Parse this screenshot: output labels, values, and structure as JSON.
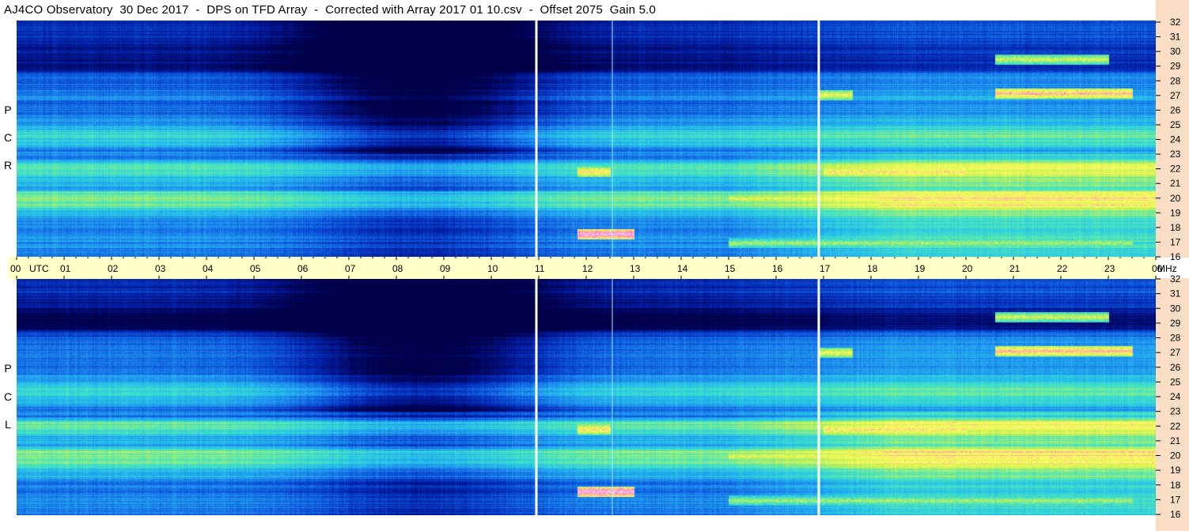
{
  "title": "AJ4CO Observatory  30 Dec 2017  -  DPS on TFD Array  -  Corrected with Array 2017 01 10.csv  -  Offset 2075  Gain 5.0",
  "colors": {
    "right_axis_bg": "#f9ddc4",
    "utc_band_bg": "#ffffc8",
    "colormap": [
      "#00004a",
      "#001aa0",
      "#0a4fd8",
      "#1f8ef0",
      "#28c8e8",
      "#4fe8b8",
      "#c8f050",
      "#ffff60",
      "#ff70d0",
      "#ffffff"
    ]
  },
  "panels": [
    {
      "id": "rcp",
      "label_letters": [
        "R",
        "C",
        "P"
      ]
    },
    {
      "id": "lcp",
      "label_letters": [
        "L",
        "C",
        "P"
      ]
    }
  ],
  "chart_data": {
    "type": "heatmap",
    "description": "Dynamic spectrogram, two panels (RCP top, LCP bottom), frequency vs UTC time",
    "x_ticks": [
      "00",
      "01",
      "02",
      "03",
      "04",
      "05",
      "06",
      "07",
      "08",
      "09",
      "10",
      "11",
      "12",
      "13",
      "14",
      "15",
      "16",
      "17",
      "18",
      "19",
      "20",
      "21",
      "22",
      "23",
      "00"
    ],
    "x_unit_label": "UTC",
    "y_ticks": [
      "32",
      "31",
      "30",
      "29",
      "28",
      "27",
      "26",
      "25",
      "24",
      "23",
      "22",
      "21",
      "20",
      "19",
      "18",
      "17",
      "16"
    ],
    "y_unit_label": "MHz",
    "xlim_hours": [
      0,
      24
    ],
    "ylim_mhz": [
      16,
      32
    ],
    "vertical_markers_hours": [
      10.95,
      12.55,
      16.9
    ],
    "background_bands_mhz": [
      {
        "mhz": 31.5,
        "level": 0.15
      },
      {
        "mhz": 30.0,
        "level": 0.1
      },
      {
        "mhz": 29.0,
        "level": 0.08
      },
      {
        "mhz": 28.0,
        "level": 0.25
      },
      {
        "mhz": 27.0,
        "level": 0.3
      },
      {
        "mhz": 26.0,
        "level": 0.28
      },
      {
        "mhz": 25.0,
        "level": 0.35
      },
      {
        "mhz": 24.5,
        "level": 0.5
      },
      {
        "mhz": 24.0,
        "level": 0.45
      },
      {
        "mhz": 23.0,
        "level": 0.3
      },
      {
        "mhz": 22.0,
        "level": 0.55
      },
      {
        "mhz": 21.0,
        "level": 0.4
      },
      {
        "mhz": 20.0,
        "level": 0.6
      },
      {
        "mhz": 19.5,
        "level": 0.58
      },
      {
        "mhz": 19.0,
        "level": 0.4
      },
      {
        "mhz": 18.0,
        "level": 0.3
      },
      {
        "mhz": 17.0,
        "level": 0.33
      },
      {
        "mhz": 16.0,
        "level": 0.28
      }
    ],
    "bursts": [
      {
        "start_hr": 11.8,
        "end_hr": 13.0,
        "mhz": 17.6,
        "level": 0.95
      },
      {
        "start_hr": 20.6,
        "end_hr": 23.5,
        "mhz": 27.1,
        "level": 0.85
      },
      {
        "start_hr": 20.6,
        "end_hr": 23.0,
        "mhz": 29.4,
        "level": 0.7
      },
      {
        "start_hr": 15.0,
        "end_hr": 23.5,
        "mhz": 20.0,
        "level": 0.72
      },
      {
        "start_hr": 15.0,
        "end_hr": 23.5,
        "mhz": 17.0,
        "level": 0.65
      },
      {
        "start_hr": 16.9,
        "end_hr": 17.6,
        "mhz": 27.0,
        "level": 0.75
      },
      {
        "start_hr": 11.8,
        "end_hr": 12.5,
        "mhz": 21.8,
        "level": 0.8
      },
      {
        "start_hr": 17.0,
        "end_hr": 20.0,
        "mhz": 21.8,
        "level": 0.8
      }
    ]
  }
}
